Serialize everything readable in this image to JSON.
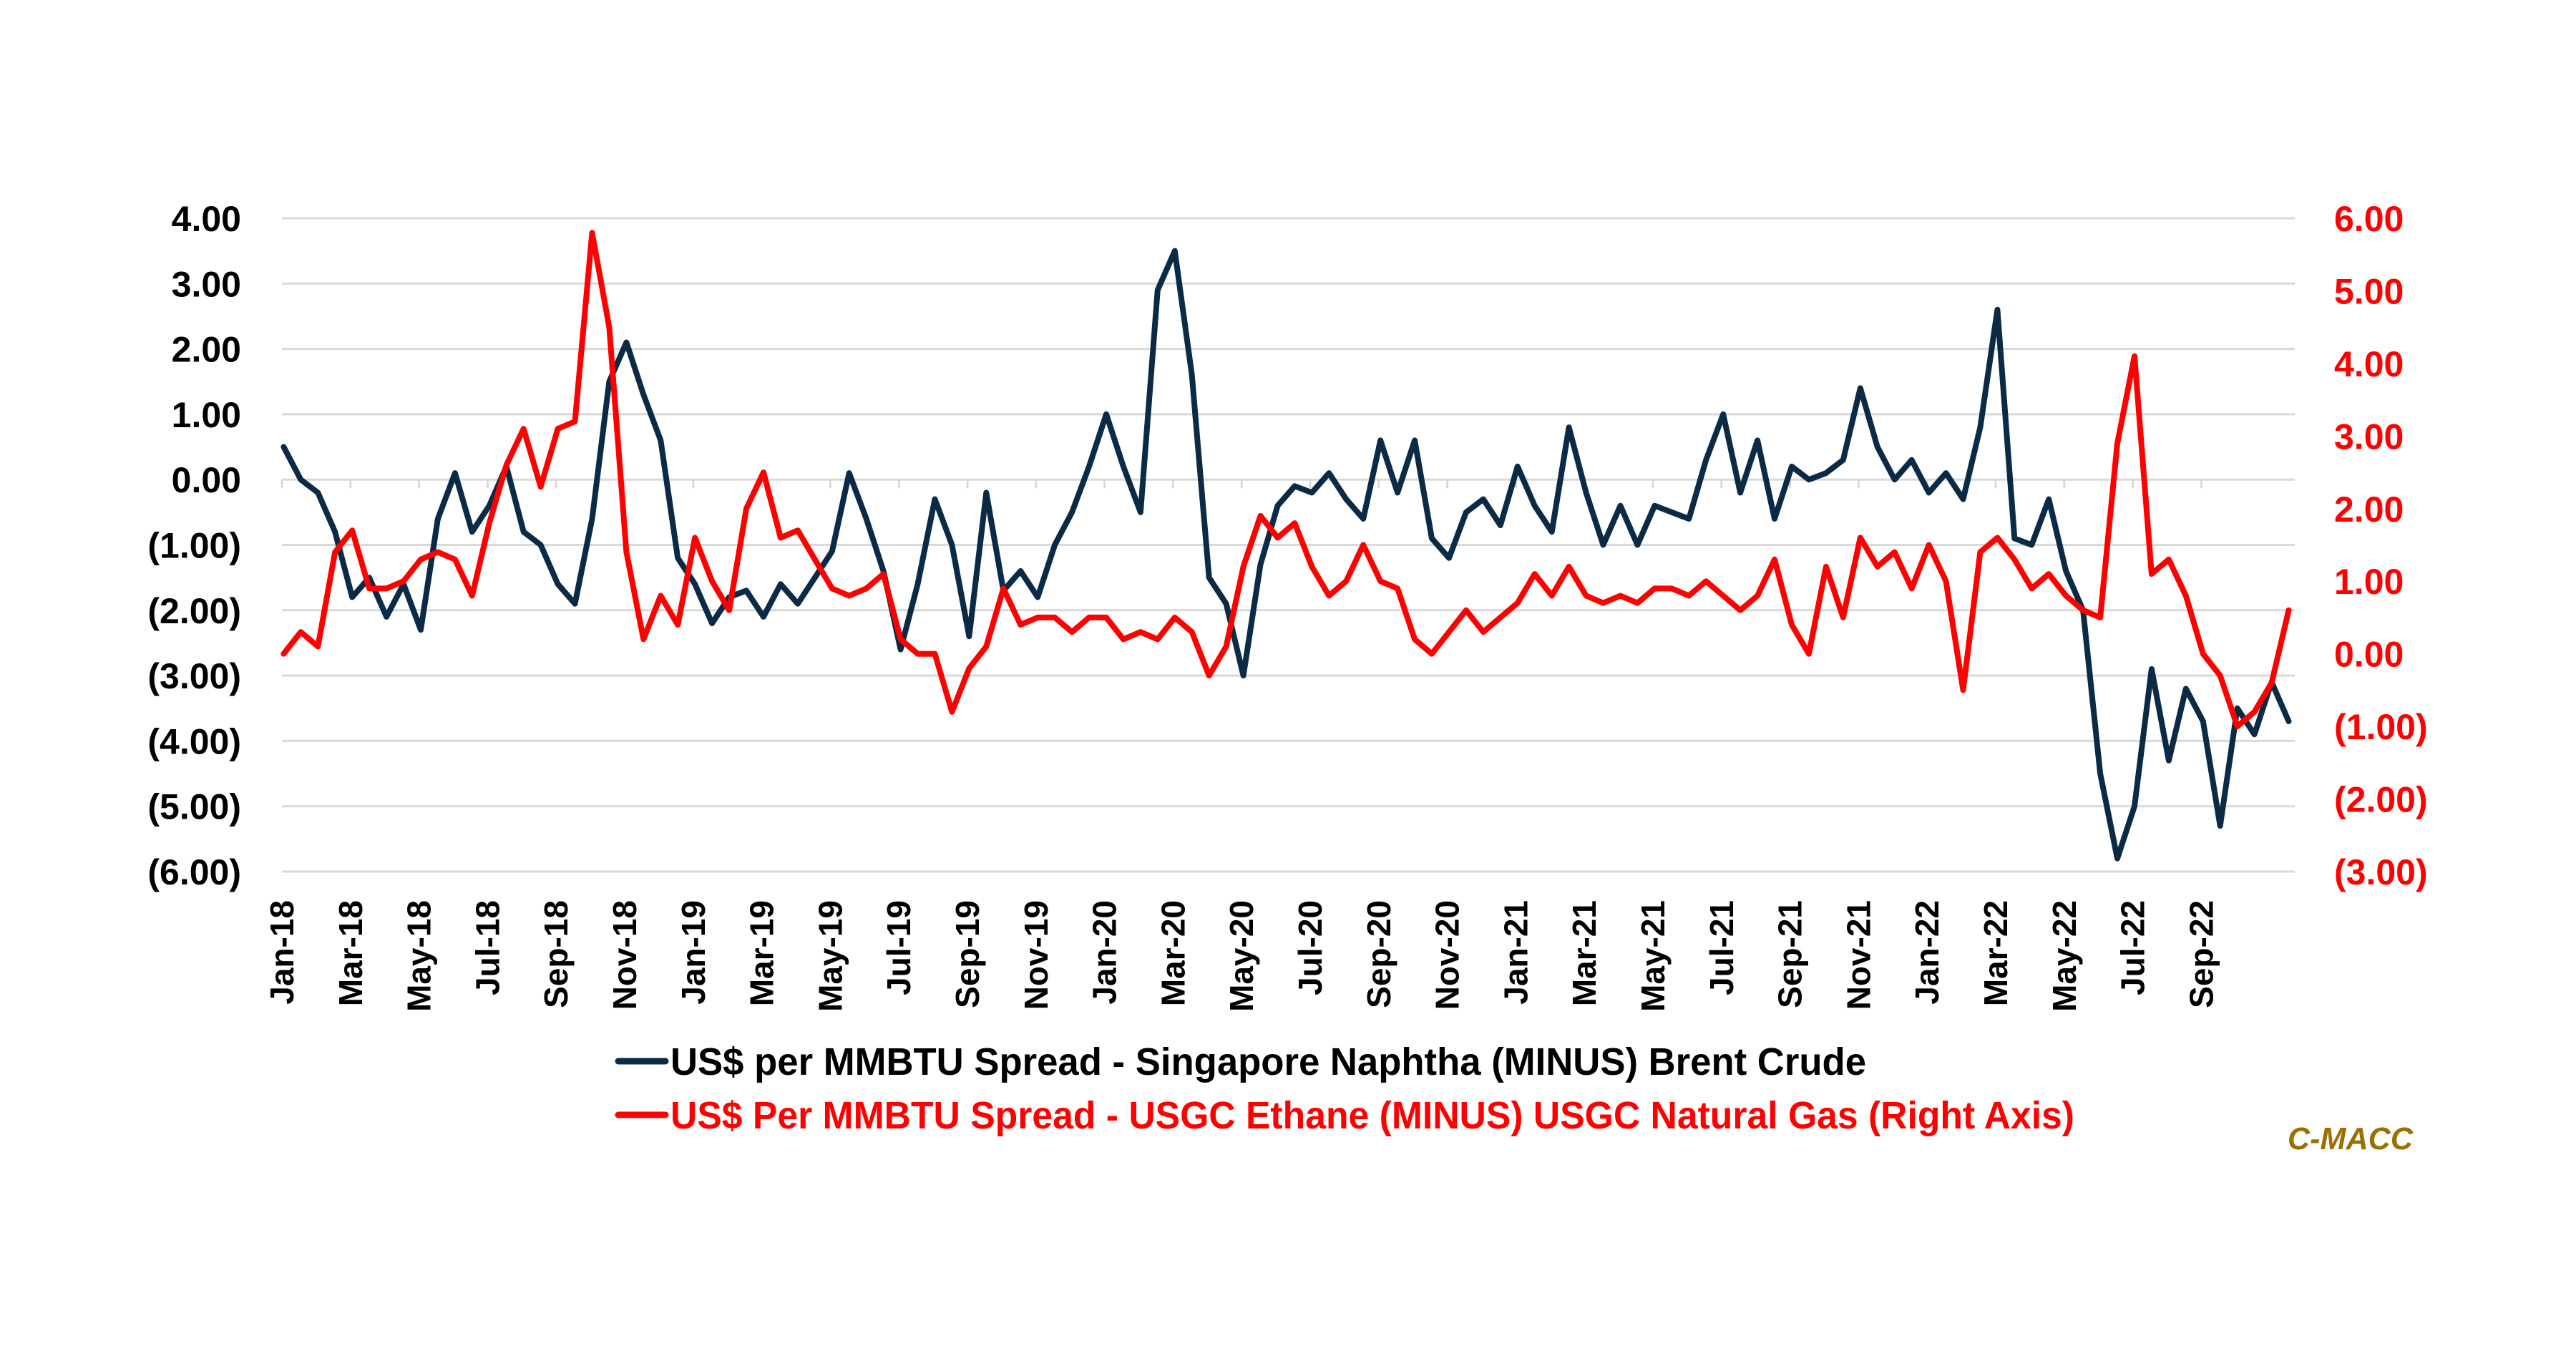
{
  "chart_data": {
    "type": "line",
    "title": "",
    "xlabel": "",
    "ylabel": "",
    "x_start": "Jan-18",
    "x_tick_labels": [
      "Jan-18",
      "Mar-18",
      "May-18",
      "Jul-18",
      "Sep-18",
      "Nov-18",
      "Jan-19",
      "Mar-19",
      "May-19",
      "Jul-19",
      "Sep-19",
      "Nov-19",
      "Jan-20",
      "Mar-20",
      "May-20",
      "Jul-20",
      "Sep-20",
      "Nov-20",
      "Jan-21",
      "Mar-21",
      "May-21",
      "Jul-21",
      "Sep-21",
      "Nov-21",
      "Jan-22",
      "Mar-22",
      "May-22",
      "Jul-22",
      "Sep-22"
    ],
    "x_step_months": 0.5,
    "y_left": {
      "lim": [
        -6,
        4
      ],
      "ticks": [
        4,
        3,
        2,
        1,
        0,
        -1,
        -2,
        -3,
        -4,
        -5,
        -6
      ],
      "tick_labels": [
        "4.00",
        "3.00",
        "2.00",
        "1.00",
        "0.00",
        "(1.00)",
        "(2.00)",
        "(3.00)",
        "(4.00)",
        "(5.00)",
        "(6.00)"
      ]
    },
    "y_right": {
      "lim": [
        -3,
        6
      ],
      "ticks": [
        6,
        5,
        4,
        3,
        2,
        1,
        0,
        -1,
        -2,
        -3
      ],
      "tick_labels": [
        "6.00",
        "5.00",
        "4.00",
        "3.00",
        "2.00",
        "1.00",
        "0.00",
        "(1.00)",
        "(2.00)",
        "(3.00)"
      ]
    },
    "grid": true,
    "legend_position": "bottom",
    "series": [
      {
        "name": "US$ per MMBTU Spread - Singapore Naphtha (MINUS) Brent Crude",
        "axis": "left",
        "color": "#0B2A45",
        "values": [
          0.5,
          0.0,
          -0.2,
          -0.8,
          -1.8,
          -1.5,
          -2.1,
          -1.6,
          -2.3,
          -0.6,
          0.1,
          -0.8,
          -0.4,
          0.2,
          -0.8,
          -1.0,
          -1.6,
          -1.9,
          -0.6,
          1.5,
          2.1,
          1.3,
          0.6,
          -1.2,
          -1.6,
          -2.2,
          -1.8,
          -1.7,
          -2.1,
          -1.6,
          -1.9,
          -1.5,
          -1.1,
          0.1,
          -0.6,
          -1.4,
          -2.6,
          -1.6,
          -0.3,
          -1.0,
          -2.4,
          -0.2,
          -1.7,
          -1.4,
          -1.8,
          -1.0,
          -0.5,
          0.2,
          1.0,
          0.2,
          -0.5,
          2.9,
          3.5,
          1.6,
          -1.5,
          -1.9,
          -3.0,
          -1.3,
          -0.4,
          -0.1,
          -0.2,
          0.1,
          -0.3,
          -0.6,
          0.6,
          -0.2,
          0.6,
          -0.9,
          -1.2,
          -0.5,
          -0.3,
          -0.7,
          0.2,
          -0.4,
          -0.8,
          0.8,
          -0.2,
          -1.0,
          -0.4,
          -1.0,
          -0.4,
          -0.5,
          -0.6,
          0.3,
          1.0,
          -0.2,
          0.6,
          -0.6,
          0.2,
          0.0,
          0.1,
          0.3,
          1.4,
          0.5,
          0.0,
          0.3,
          -0.2,
          0.1,
          -0.3,
          0.8,
          2.6,
          -0.9,
          -1.0,
          -0.3,
          -1.4,
          -2.0,
          -4.5,
          -5.8,
          -5.0,
          -2.9,
          -4.3,
          -3.2,
          -3.7,
          -5.3,
          -3.5,
          -3.9,
          -3.1,
          -3.7
        ]
      },
      {
        "name": "US$ Per MMBTU Spread - USGC Ethane (MINUS) USGC Natural Gas (Right Axis)",
        "axis": "right",
        "color": "#FF0000",
        "values": [
          0.0,
          0.3,
          0.1,
          1.4,
          1.7,
          0.9,
          0.9,
          1.0,
          1.3,
          1.4,
          1.3,
          0.8,
          1.8,
          2.6,
          3.1,
          2.3,
          3.1,
          3.2,
          5.8,
          4.5,
          1.4,
          0.2,
          0.8,
          0.4,
          1.6,
          1.0,
          0.6,
          2.0,
          2.5,
          1.6,
          1.7,
          1.3,
          0.9,
          0.8,
          0.9,
          1.1,
          0.2,
          0.0,
          0.0,
          -0.8,
          -0.2,
          0.1,
          0.9,
          0.4,
          0.5,
          0.5,
          0.3,
          0.5,
          0.5,
          0.2,
          0.3,
          0.2,
          0.5,
          0.3,
          -0.3,
          0.1,
          1.2,
          1.9,
          1.6,
          1.8,
          1.2,
          0.8,
          1.0,
          1.5,
          1.0,
          0.9,
          0.2,
          0.0,
          0.3,
          0.6,
          0.3,
          0.5,
          0.7,
          1.1,
          0.8,
          1.2,
          0.8,
          0.7,
          0.8,
          0.7,
          0.9,
          0.9,
          0.8,
          1.0,
          0.8,
          0.6,
          0.8,
          1.3,
          0.4,
          0.0,
          1.2,
          0.5,
          1.6,
          1.2,
          1.4,
          0.9,
          1.5,
          1.0,
          -0.5,
          1.4,
          1.6,
          1.3,
          0.9,
          1.1,
          0.8,
          0.6,
          0.5,
          2.9,
          4.1,
          1.1,
          1.3,
          0.8,
          0.0,
          -0.3,
          -1.0,
          -0.8,
          -0.4,
          0.6
        ]
      }
    ]
  },
  "legend": {
    "items": [
      {
        "label": "US$ per MMBTU Spread - Singapore Naphtha (MINUS) Brent Crude",
        "color": "#0B2A45",
        "text_color": "#000000"
      },
      {
        "label": "US$ Per MMBTU Spread - USGC Ethane (MINUS) USGC Natural Gas (Right Axis)",
        "color": "#FF0000",
        "text_color": "#FF0000"
      }
    ]
  },
  "watermark": {
    "text": "C-MACC",
    "color": "#9A7000"
  },
  "colors": {
    "grid": "#D9D9D9",
    "left_axis_text": "#000000",
    "right_axis_text": "#FF0000"
  }
}
